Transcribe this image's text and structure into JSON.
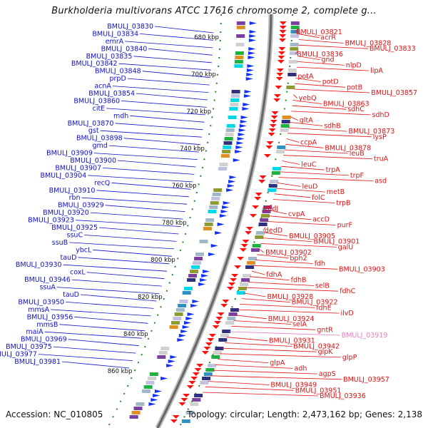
{
  "title": "Burkholderia multivorans ATCC 17616 chromosome 2, complete g...",
  "accession": "Accession: NC_010805",
  "topology": "Topology: circular; Length: 2,473,162 bp; Genes: 2,138",
  "colors": {
    "left_labels": "#1010cc",
    "right_labels": "#e01010",
    "highlight_label": "#e080c0",
    "backbone": "#999999",
    "tick_dots": "#228b22"
  },
  "scale_ticks": [
    "680 kbp",
    "700 kbp",
    "720 kbp",
    "740 kbp",
    "760 kbp",
    "780 kbp",
    "800 kbp",
    "820 kbp",
    "840 kbp",
    "860 kbp"
  ],
  "left_genes": [
    "BMULJ_03830",
    "BMULJ_03834",
    "emrA",
    "BMULJ_03840",
    "BMULJ_03835",
    "BMULJ_03842",
    "BMULJ_03848",
    "prpD",
    "acnA",
    "BMULJ_03854",
    "BMULJ_03860",
    "citE",
    "mdh",
    "BMULJ_03870",
    "gst",
    "BMULJ_03898",
    "gmd",
    "BMULJ_03909",
    "BMULJ_03900",
    "BMULJ_03907",
    "BMULJ_03904",
    "recQ",
    "BMULJ_03910",
    "rbn",
    "BMULJ_03929",
    "BMULJ_03920",
    "BMULJ_03923",
    "BMULJ_03925",
    "ssuC",
    "ssuB",
    "ybcL",
    "tauD",
    "BMULJ_03930",
    "coxL",
    "BMULJ_03946",
    "ssuA",
    "tauD",
    "BMULJ_03950",
    "mmsA",
    "BMULJ_03956",
    "mmsB",
    "maiA",
    "BMULJ_03969",
    "BMULJ_03975",
    "BMULJ_03977",
    "BMULJ_03981"
  ],
  "right_genes": [
    "BMULJ_03821",
    "acrR",
    "BMULJ_03828",
    "BMULJ_03833",
    "BMULJ_03836",
    "gnd",
    "nlpD",
    "lipA",
    "potA",
    "potD",
    "potB",
    "BMULJ_03857",
    "yebQ",
    "BMULJ_03863",
    "sdhC",
    "sdhD",
    "gltA",
    "sdhB",
    "BMULJ_03873",
    "lysP",
    "ccpA",
    "BMULJ_03878",
    "leuB",
    "truA",
    "leuC",
    "trpA",
    "trpF",
    "asd",
    "leuD",
    "metB",
    "folC",
    "trpB",
    "yhdJ",
    "cvpA",
    "accD",
    "purF",
    "dedD",
    "BMULJ_03905",
    "BMULJ_03901",
    "galU",
    "BMULJ_03902",
    "bph2",
    "fdh",
    "BMULJ_03903",
    "fdhA",
    "fdhB",
    "selB",
    "fdhC",
    "BMULJ_03928",
    "BMULJ_03922",
    "fdhE",
    "ilvD",
    "BMULJ_03924",
    "selA",
    "gntR",
    "BMULJ_03919",
    "BMULJ_03931",
    "BMULJ_03942",
    "glpK",
    "glpP",
    "glpA",
    "adh",
    "agpS",
    "BMULJ_03957",
    "BMULJ_03949",
    "BMULJ_03951",
    "BMULJ_03936"
  ],
  "highlight_gene": "BMULJ_03919"
}
